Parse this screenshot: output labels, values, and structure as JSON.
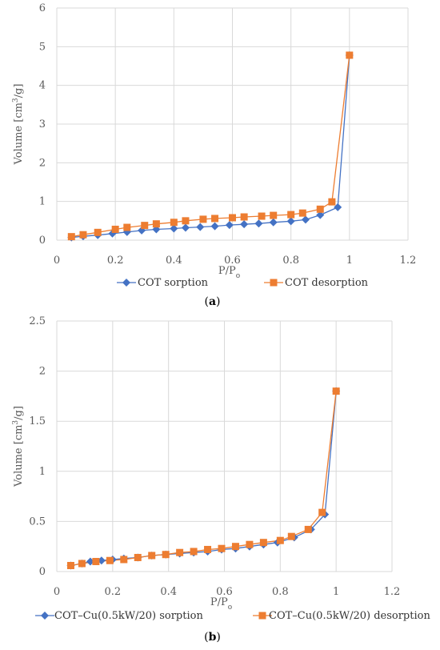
{
  "chart_data": [
    {
      "type": "scatter",
      "panel_label": "(a)",
      "xlabel": "P/Po",
      "ylabel": "Volume [cm3/g]",
      "xlim": [
        0,
        1.2
      ],
      "ylim": [
        0,
        6
      ],
      "x_ticks": [
        0,
        0.2,
        0.4,
        0.6,
        0.8,
        1,
        1.2
      ],
      "y_ticks": [
        0,
        1,
        2,
        3,
        4,
        5,
        6
      ],
      "grid": true,
      "legend_position": "bottom",
      "series": [
        {
          "name": "COT sorption",
          "color": "#4472C4",
          "marker": "diamond",
          "points": [
            [
              0.05,
              0.07
            ],
            [
              0.09,
              0.1
            ],
            [
              0.14,
              0.13
            ],
            [
              0.19,
              0.17
            ],
            [
              0.24,
              0.21
            ],
            [
              0.29,
              0.25
            ],
            [
              0.34,
              0.28
            ],
            [
              0.4,
              0.3
            ],
            [
              0.44,
              0.32
            ],
            [
              0.49,
              0.34
            ],
            [
              0.54,
              0.36
            ],
            [
              0.59,
              0.39
            ],
            [
              0.64,
              0.41
            ],
            [
              0.69,
              0.43
            ],
            [
              0.74,
              0.46
            ],
            [
              0.8,
              0.49
            ],
            [
              0.85,
              0.53
            ],
            [
              0.9,
              0.65
            ],
            [
              0.96,
              0.85
            ],
            [
              1.0,
              4.78
            ]
          ]
        },
        {
          "name": "COT desorption",
          "color": "#ED7D31",
          "marker": "square",
          "points": [
            [
              0.05,
              0.09
            ],
            [
              0.09,
              0.14
            ],
            [
              0.14,
              0.2
            ],
            [
              0.2,
              0.28
            ],
            [
              0.24,
              0.33
            ],
            [
              0.3,
              0.38
            ],
            [
              0.34,
              0.42
            ],
            [
              0.4,
              0.46
            ],
            [
              0.44,
              0.5
            ],
            [
              0.5,
              0.54
            ],
            [
              0.54,
              0.56
            ],
            [
              0.6,
              0.58
            ],
            [
              0.64,
              0.6
            ],
            [
              0.7,
              0.62
            ],
            [
              0.74,
              0.64
            ],
            [
              0.8,
              0.66
            ],
            [
              0.84,
              0.7
            ],
            [
              0.9,
              0.8
            ],
            [
              0.94,
              0.99
            ],
            [
              1.0,
              4.78
            ]
          ]
        }
      ]
    },
    {
      "type": "scatter",
      "panel_label": "(b)",
      "xlabel": "P/Po",
      "ylabel": "Volume [cm3/g]",
      "xlim": [
        0,
        1.2
      ],
      "ylim": [
        0,
        2.5
      ],
      "x_ticks": [
        0,
        0.2,
        0.4,
        0.6,
        0.8,
        1,
        1.2
      ],
      "y_ticks": [
        0,
        0.5,
        1,
        1.5,
        2,
        2.5
      ],
      "grid": true,
      "legend_position": "bottom",
      "series": [
        {
          "name": "COT–Cu(0.5kW/20) sorption",
          "color": "#4472C4",
          "marker": "diamond",
          "points": [
            [
              0.05,
              0.06
            ],
            [
              0.09,
              0.08
            ],
            [
              0.12,
              0.1
            ],
            [
              0.16,
              0.11
            ],
            [
              0.2,
              0.12
            ],
            [
              0.24,
              0.13
            ],
            [
              0.29,
              0.14
            ],
            [
              0.34,
              0.16
            ],
            [
              0.39,
              0.17
            ],
            [
              0.44,
              0.18
            ],
            [
              0.49,
              0.19
            ],
            [
              0.54,
              0.2
            ],
            [
              0.59,
              0.22
            ],
            [
              0.64,
              0.23
            ],
            [
              0.69,
              0.25
            ],
            [
              0.74,
              0.27
            ],
            [
              0.79,
              0.29
            ],
            [
              0.85,
              0.34
            ],
            [
              0.91,
              0.42
            ],
            [
              0.96,
              0.57
            ],
            [
              1.0,
              1.8
            ]
          ]
        },
        {
          "name": "COT–Cu(0.5kW/20) desorption",
          "color": "#ED7D31",
          "marker": "square",
          "points": [
            [
              0.05,
              0.06
            ],
            [
              0.09,
              0.08
            ],
            [
              0.14,
              0.1
            ],
            [
              0.19,
              0.11
            ],
            [
              0.24,
              0.12
            ],
            [
              0.29,
              0.14
            ],
            [
              0.34,
              0.16
            ],
            [
              0.39,
              0.17
            ],
            [
              0.44,
              0.19
            ],
            [
              0.49,
              0.2
            ],
            [
              0.54,
              0.22
            ],
            [
              0.59,
              0.23
            ],
            [
              0.64,
              0.25
            ],
            [
              0.69,
              0.27
            ],
            [
              0.74,
              0.29
            ],
            [
              0.8,
              0.31
            ],
            [
              0.84,
              0.35
            ],
            [
              0.9,
              0.42
            ],
            [
              0.95,
              0.59
            ],
            [
              1.0,
              1.8
            ]
          ]
        }
      ]
    }
  ]
}
